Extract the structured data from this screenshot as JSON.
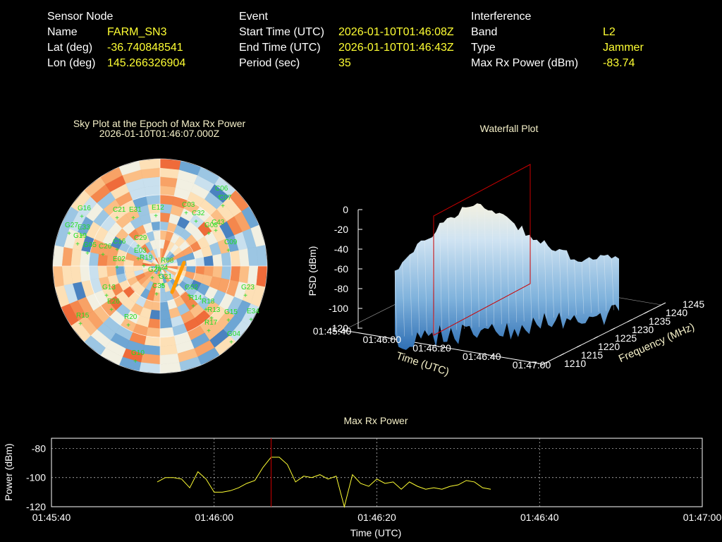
{
  "sensor": {
    "heading": "Sensor Node",
    "name_label": "Name",
    "name": "FARM_SN3",
    "lat_label": "Lat (deg)",
    "lat": "-36.740848541",
    "lon_label": "Lon (deg)",
    "lon": "145.266326904"
  },
  "event": {
    "heading": "Event",
    "start_label": "Start Time (UTC)",
    "start": "2026-01-10T01:46:08Z",
    "end_label": "End Time (UTC)",
    "end": "2026-01-10T01:46:43Z",
    "period_label": "Period (sec)",
    "period": "35"
  },
  "interference": {
    "heading": "Interference",
    "band_label": "Band",
    "band": "L2",
    "type_label": "Type",
    "type": "Jammer",
    "maxpow_label": "Max Rx Power (dBm)",
    "maxpow": "-83.74"
  },
  "skyplot": {
    "title": "Sky Plot at the Epoch of Max Rx Power",
    "subtitle": "2026-01-10T01:46:07.000Z",
    "satellites": [
      "G16",
      "G27",
      "G19",
      "G05",
      "C21",
      "E31",
      "E12",
      "C03",
      "C32",
      "G08",
      "C06",
      "C07",
      "C43",
      "C09",
      "C29",
      "C16",
      "C26",
      "R19",
      "R08",
      "R24",
      "E02",
      "G13",
      "E26",
      "R15",
      "R20",
      "G24",
      "G21",
      "C35",
      "G02",
      "R14",
      "R18",
      "R13",
      "G23",
      "E34",
      "G15",
      "R17",
      "G04",
      "G10",
      "E33",
      "E03"
    ]
  },
  "waterfall": {
    "title": "Waterfall Plot",
    "zlabel": "PSD (dBm)",
    "xlabel": "Time (UTC)",
    "ylabel": "Frequency (MHz)",
    "zticks": [
      "0",
      "-20",
      "-40",
      "-60",
      "-80",
      "-100",
      "-120"
    ],
    "xticks": [
      "01:45:40",
      "01:46:00",
      "01:46:20",
      "01:46:40",
      "01:47:00"
    ],
    "yticks": [
      "1210",
      "1215",
      "1220",
      "1225",
      "1230",
      "1235",
      "1240",
      "1245"
    ]
  },
  "chart_data": {
    "type": "line",
    "title": "Max Rx Power",
    "xlabel": "Time (UTC)",
    "ylabel": "Power (dBm)",
    "xticks": [
      "01:45:40",
      "01:46:00",
      "01:46:20",
      "01:46:40",
      "01:47:00"
    ],
    "yticks": [
      -80,
      -100,
      -120
    ],
    "xlim_sec": [
      0,
      80
    ],
    "ylim": [
      -120,
      -73
    ],
    "grid": true,
    "marker_time": "01:46:07",
    "series_color": "#ffff33",
    "marker_color": "#cc0000",
    "segments": [
      {
        "t": [
          13,
          14,
          15,
          16,
          17,
          18,
          19,
          20,
          21,
          22,
          23,
          24,
          25,
          26,
          27,
          28,
          29,
          30,
          31,
          32,
          33,
          34,
          35,
          36,
          37,
          38,
          39,
          40,
          41,
          42,
          43,
          44,
          45,
          46,
          47,
          48,
          49,
          50,
          51,
          52,
          53,
          54
        ],
        "v": [
          -103,
          -100,
          -100,
          -101,
          -107,
          -96,
          -101,
          -110,
          -110,
          -109,
          -107,
          -104,
          -102,
          -93,
          -86,
          -86,
          -91,
          -103,
          -99,
          -100,
          -98,
          -101,
          -99,
          -120,
          -98,
          -104,
          -106,
          -101,
          -104,
          -103,
          -108,
          -103,
          -106,
          -108,
          -107,
          -108,
          -106,
          -105,
          -102,
          -103,
          -107,
          -108
        ]
      }
    ]
  }
}
